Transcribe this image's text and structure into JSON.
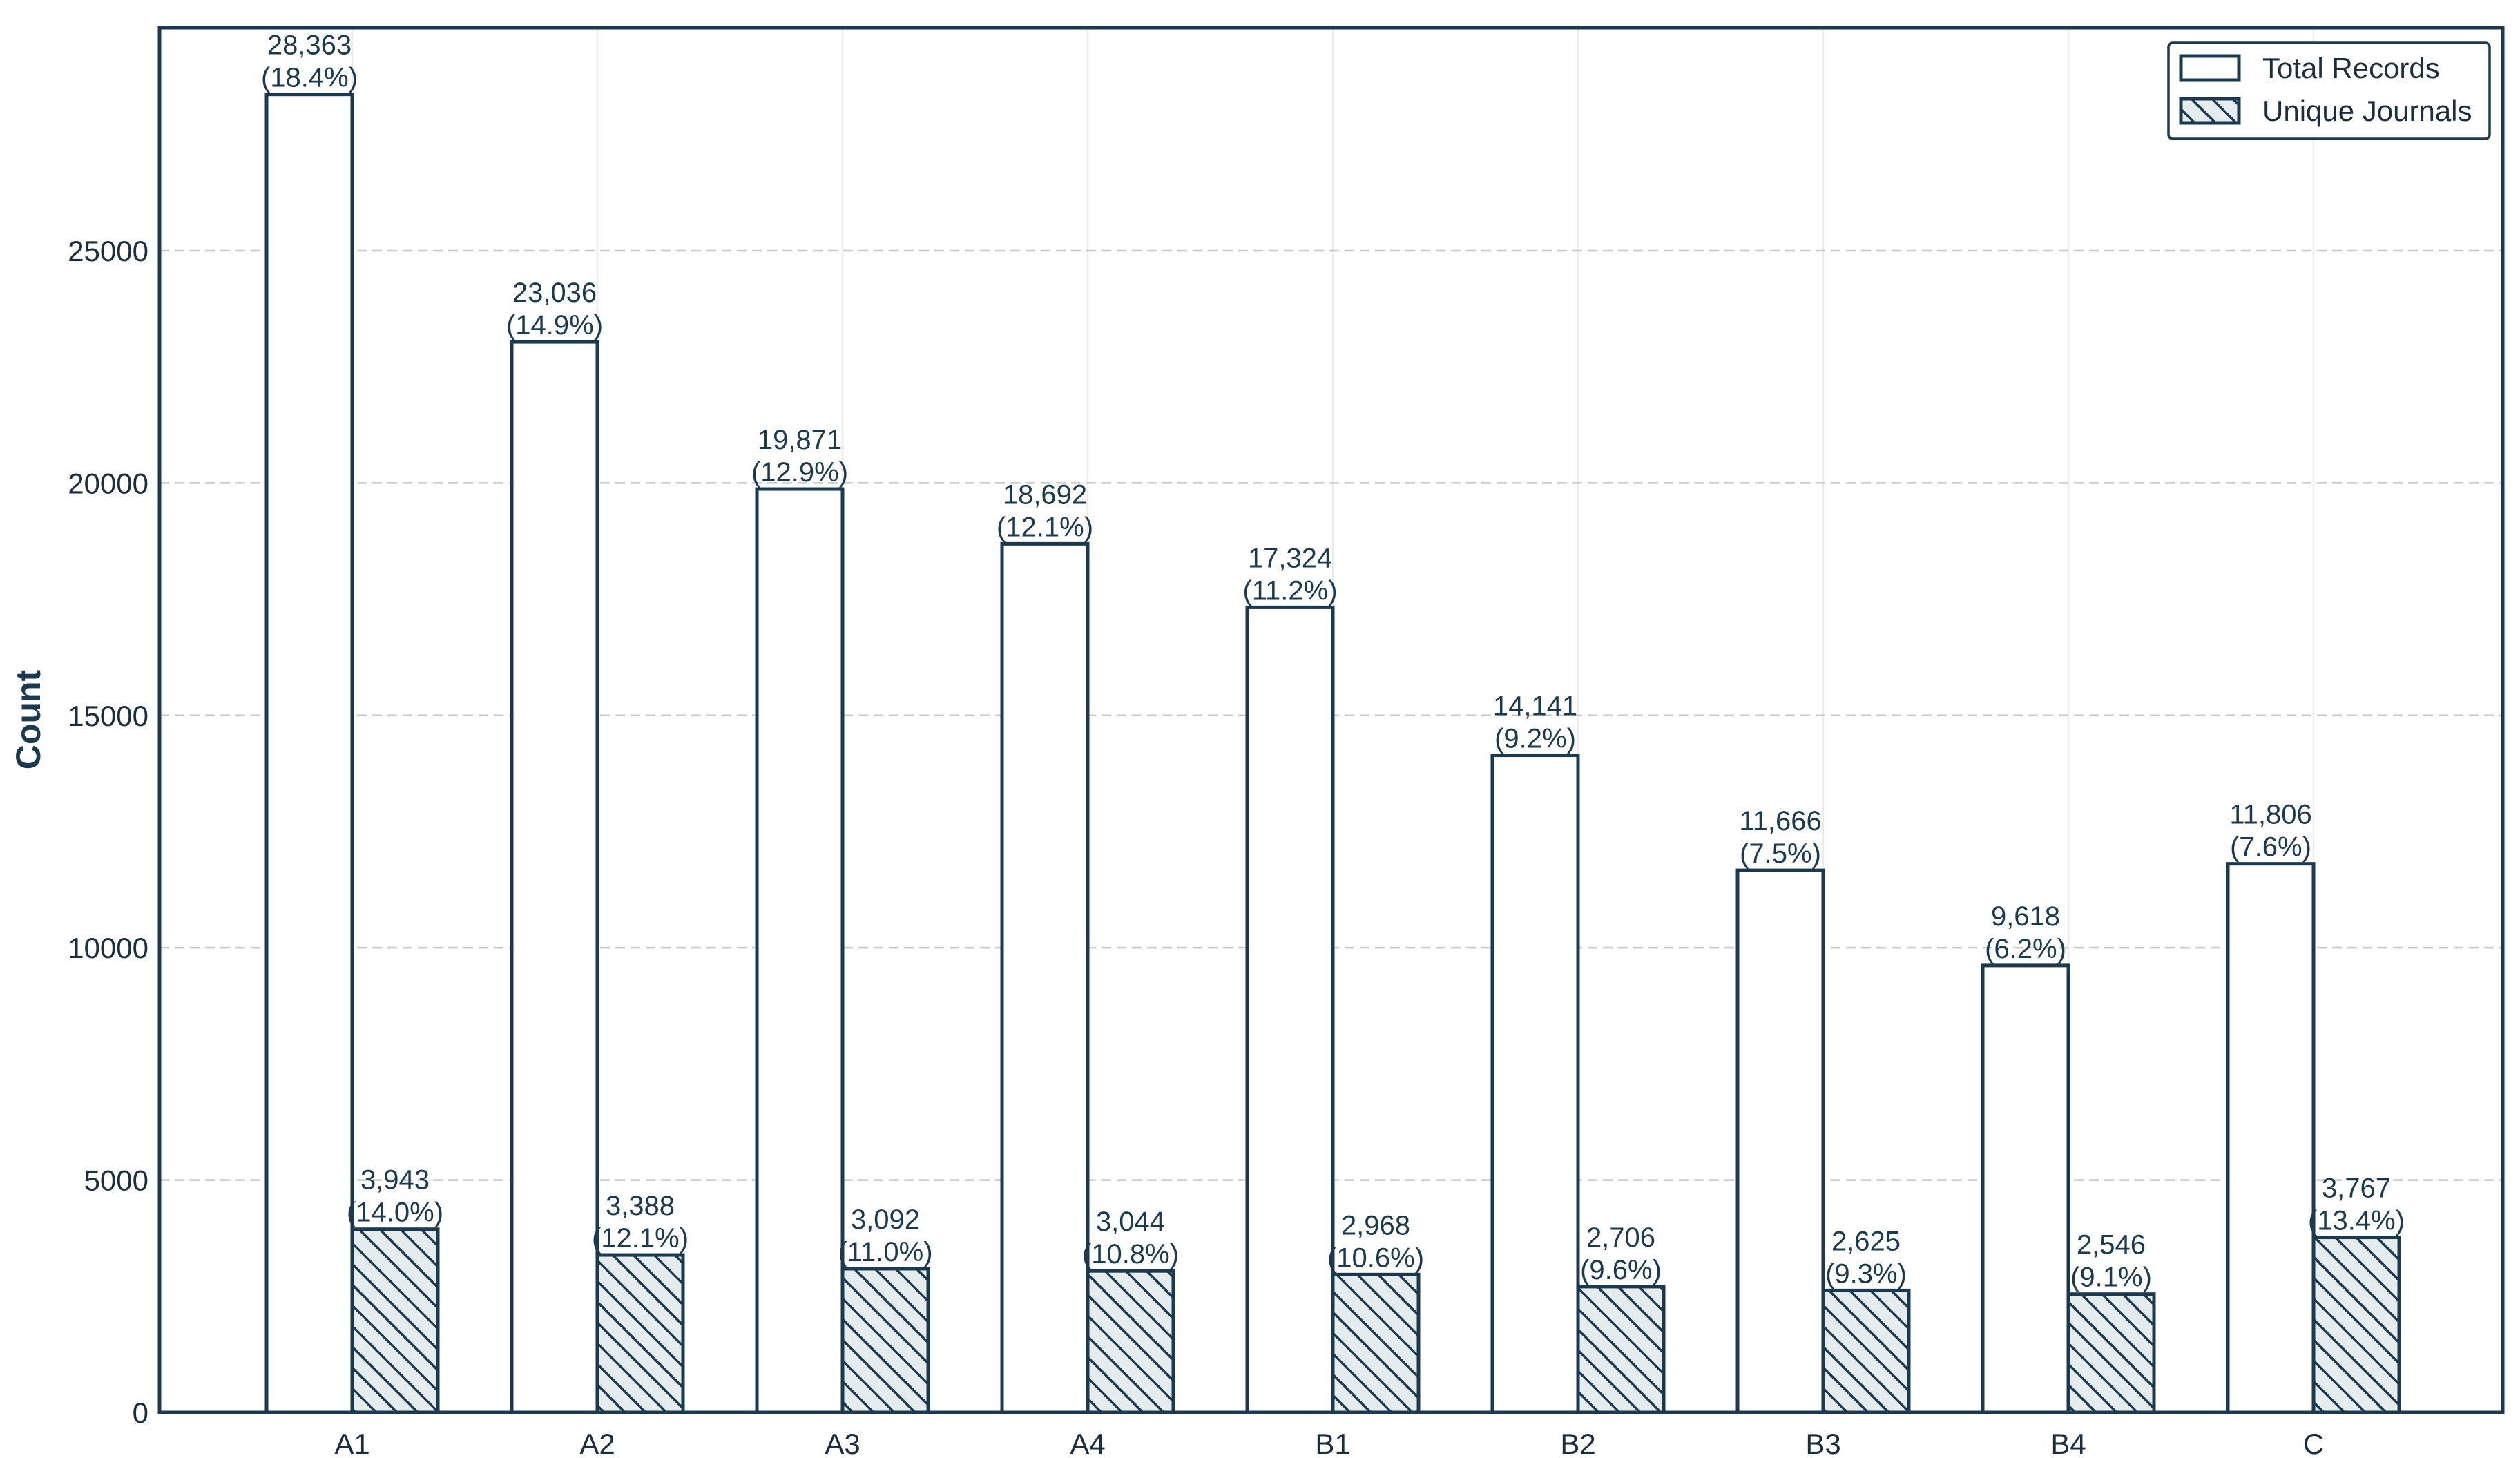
{
  "chart_data": {
    "type": "bar",
    "title": "",
    "xlabel": "",
    "ylabel": "Count",
    "ylim": [
      0,
      29800
    ],
    "yticks": [
      0,
      5000,
      10000,
      15000,
      20000,
      25000
    ],
    "categories": [
      "A1",
      "A2",
      "A3",
      "A4",
      "B1",
      "B2",
      "B3",
      "B4",
      "C"
    ],
    "grid": "horizontal dashed, vertical light",
    "legend_position": "top-right",
    "series": [
      {
        "name": "Total Records",
        "style": "white fill",
        "values": [
          28363,
          23036,
          19871,
          18692,
          17324,
          14141,
          11666,
          9618,
          11806
        ],
        "labels": [
          "28,363",
          "23,036",
          "19,871",
          "18,692",
          "17,324",
          "14,141",
          "11,666",
          "9,618",
          "11,806"
        ],
        "percent_labels": [
          "(18.4%)",
          "(14.9%)",
          "(12.9%)",
          "(12.1%)",
          "(11.2%)",
          "(9.2%)",
          "(7.5%)",
          "(6.2%)",
          "(7.6%)"
        ]
      },
      {
        "name": "Unique Journals",
        "style": "hatched fill",
        "values": [
          3943,
          3388,
          3092,
          3044,
          2968,
          2706,
          2625,
          2546,
          3767
        ],
        "labels": [
          "3,943",
          "3,388",
          "3,092",
          "3,044",
          "2,968",
          "2,706",
          "2,625",
          "2,546",
          "3,767"
        ],
        "percent_labels": [
          "(14.0%)",
          "(12.1%)",
          "(11.0%)",
          "(10.8%)",
          "(10.6%)",
          "(9.6%)",
          "(9.3%)",
          "(9.1%)",
          "(13.4%)"
        ]
      }
    ],
    "colors": {
      "edge": "#1c3a4f",
      "hatch_fill": "#e4ecee",
      "grid": "#c8c8c8",
      "vgrid": "#ececec"
    }
  }
}
